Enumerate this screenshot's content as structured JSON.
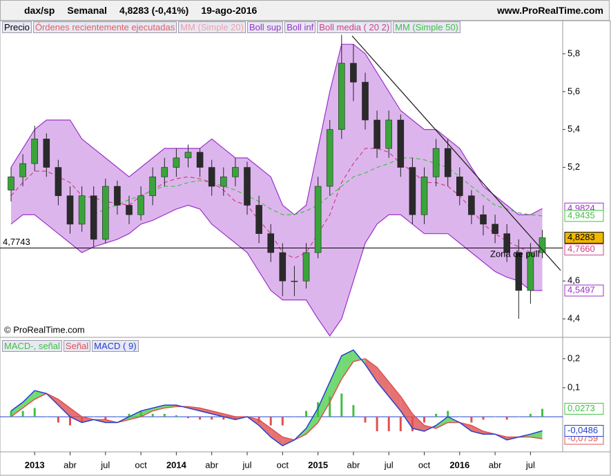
{
  "header": {
    "symbol": "dax/sp",
    "period": "Semanal",
    "quote": "4,8283 (-0,41%)",
    "date": "19-ago-2016",
    "source": "www.ProRealTime.com"
  },
  "chart_data": [
    {
      "type": "candlestick",
      "name": "Precio",
      "watermark": "© ProRealTime.com",
      "annotation": "Zona de pull",
      "other_legend": [
        {
          "name": "Órdenes recientemente ejecutadas",
          "color": "#e06060"
        },
        {
          "name": "MM (Simple 20)",
          "color": "#f0a0a0"
        }
      ],
      "x": [
        "2012-11",
        "2012-12",
        "2013-01",
        "2013-02",
        "2013-03",
        "2013-04",
        "2013-05",
        "2013-06",
        "2013-07",
        "2013-08",
        "2013-09",
        "2013-10",
        "2013-11",
        "2013-12",
        "2014-01",
        "2014-02",
        "2014-03",
        "2014-04",
        "2014-05",
        "2014-06",
        "2014-07",
        "2014-08",
        "2014-09",
        "2014-10",
        "2014-11",
        "2014-12",
        "2015-01",
        "2015-02",
        "2015-03",
        "2015-04",
        "2015-05",
        "2015-06",
        "2015-07",
        "2015-08",
        "2015-09",
        "2015-10",
        "2015-11",
        "2015-12",
        "2016-01",
        "2016-02",
        "2016-03",
        "2016-04",
        "2016-05",
        "2016-06",
        "2016-07",
        "2016-08"
      ],
      "open": [
        5.08,
        5.15,
        5.22,
        5.35,
        5.2,
        5.05,
        4.9,
        5.05,
        4.82,
        5.1,
        5.0,
        4.95,
        5.05,
        5.15,
        5.2,
        5.25,
        5.28,
        5.2,
        5.1,
        5.15,
        5.2,
        5.0,
        4.85,
        4.75,
        4.6,
        4.6,
        4.75,
        5.1,
        5.4,
        5.75,
        5.65,
        5.45,
        5.3,
        5.45,
        5.2,
        4.95,
        5.15,
        5.3,
        5.15,
        5.05,
        4.95,
        4.9,
        4.85,
        4.75,
        4.55,
        4.75
      ],
      "high": [
        5.2,
        5.27,
        5.42,
        5.38,
        5.24,
        5.1,
        5.1,
        5.1,
        5.14,
        5.13,
        5.05,
        5.1,
        5.2,
        5.25,
        5.3,
        5.32,
        5.3,
        5.24,
        5.2,
        5.25,
        5.23,
        5.05,
        4.9,
        4.8,
        4.68,
        4.8,
        5.15,
        5.45,
        5.9,
        5.85,
        5.7,
        5.5,
        5.5,
        5.48,
        5.25,
        5.2,
        5.35,
        5.35,
        5.2,
        5.08,
        5.0,
        4.95,
        4.9,
        4.82,
        4.8,
        4.87
      ],
      "low": [
        5.02,
        5.1,
        5.18,
        5.15,
        5.0,
        4.85,
        4.86,
        4.78,
        4.8,
        4.95,
        4.9,
        4.92,
        5.0,
        5.1,
        5.15,
        5.2,
        5.15,
        5.05,
        5.05,
        5.1,
        4.95,
        4.8,
        4.7,
        4.52,
        4.52,
        4.56,
        4.72,
        5.05,
        5.35,
        5.55,
        5.4,
        5.25,
        5.25,
        5.15,
        4.9,
        4.9,
        5.1,
        5.1,
        5.0,
        4.9,
        4.84,
        4.8,
        4.7,
        4.4,
        4.48,
        4.72
      ],
      "close": [
        5.15,
        5.22,
        5.35,
        5.2,
        5.05,
        4.9,
        5.05,
        4.82,
        5.1,
        5.0,
        4.95,
        5.05,
        5.15,
        5.2,
        5.25,
        5.28,
        5.2,
        5.1,
        5.15,
        5.2,
        5.0,
        4.85,
        4.75,
        4.6,
        4.6,
        4.75,
        5.1,
        5.4,
        5.75,
        5.65,
        5.45,
        5.3,
        5.45,
        5.2,
        4.95,
        5.15,
        5.3,
        5.15,
        5.05,
        4.95,
        4.9,
        4.85,
        4.75,
        4.55,
        4.75,
        4.8283
      ],
      "up_color": "#3aa43a",
      "down_color": "#2a2a2a",
      "marker": {
        "value": 4.8283,
        "label": "4,8283",
        "color": "#f0b800"
      },
      "hline": {
        "value": 4.7743,
        "label": "4,7743"
      },
      "series": [
        {
          "name": "Boll sup",
          "color": "#9b30c8",
          "values": [
            5.2,
            5.3,
            5.4,
            5.45,
            5.45,
            5.45,
            5.35,
            5.3,
            5.25,
            5.2,
            5.15,
            5.2,
            5.25,
            5.3,
            5.3,
            5.3,
            5.3,
            5.35,
            5.3,
            5.25,
            5.25,
            5.2,
            5.15,
            5.0,
            4.95,
            5.0,
            5.3,
            5.6,
            5.85,
            5.85,
            5.8,
            5.7,
            5.6,
            5.5,
            5.45,
            5.4,
            5.4,
            5.35,
            5.3,
            5.2,
            5.1,
            5.05,
            5.0,
            4.95,
            4.95,
            4.9824
          ],
          "marker": {
            "value": 4.9824,
            "label": "4,9824"
          }
        },
        {
          "name": "Boll inf",
          "color": "#9b30c8",
          "values": [
            4.9,
            4.95,
            4.95,
            4.9,
            4.85,
            4.8,
            4.75,
            4.78,
            4.8,
            4.82,
            4.85,
            4.9,
            4.92,
            4.95,
            4.98,
            5.0,
            4.98,
            4.9,
            4.85,
            4.8,
            4.75,
            4.65,
            4.55,
            4.5,
            4.5,
            4.5,
            4.4,
            4.31,
            4.4,
            4.6,
            4.8,
            4.9,
            4.95,
            4.95,
            4.9,
            4.85,
            4.85,
            4.85,
            4.8,
            4.75,
            4.7,
            4.65,
            4.62,
            4.6,
            4.55,
            4.5497
          ],
          "marker": {
            "value": 4.5497,
            "label": "4,5497"
          }
        },
        {
          "name": "Boll media ( 20 2)",
          "color": "#d04080",
          "values": [
            5.05,
            5.12,
            5.18,
            5.18,
            5.15,
            5.12,
            5.05,
            5.04,
            5.02,
            5.01,
            5.0,
            5.05,
            5.08,
            5.12,
            5.14,
            5.15,
            5.14,
            5.12,
            5.08,
            5.02,
            5.0,
            4.92,
            4.85,
            4.75,
            4.72,
            4.75,
            4.85,
            4.95,
            5.12,
            5.22,
            5.3,
            5.3,
            5.28,
            5.22,
            5.18,
            5.12,
            5.12,
            5.1,
            5.05,
            4.98,
            4.9,
            4.85,
            4.81,
            4.78,
            4.75,
            4.766
          ],
          "marker": {
            "value": 4.766,
            "label": "4,7660"
          }
        },
        {
          "name": "MM (Simple 50)",
          "color": "#40c040",
          "values": [
            null,
            null,
            null,
            null,
            null,
            null,
            null,
            4.95,
            4.98,
            5.0,
            5.03,
            5.05,
            5.08,
            5.1,
            5.1,
            5.12,
            5.13,
            5.12,
            5.1,
            5.08,
            5.05,
            5.02,
            4.98,
            4.95,
            4.95,
            4.97,
            5.0,
            5.05,
            5.1,
            5.15,
            5.17,
            5.2,
            5.22,
            5.25,
            5.25,
            5.24,
            5.22,
            5.2,
            5.15,
            5.1,
            5.05,
            5.0,
            4.98,
            4.96,
            4.95,
            4.9435
          ],
          "marker": {
            "value": 4.9435,
            "label": "4,9435"
          }
        }
      ],
      "ylim": [
        4.306,
        5.909
      ],
      "yticks": [
        {
          "value": 4.4,
          "label": "4,4"
        },
        {
          "value": 4.6,
          "label": "4,6"
        },
        {
          "value": 5.2,
          "label": "5,2"
        },
        {
          "value": 5.4,
          "label": "5,4"
        },
        {
          "value": 5.6,
          "label": "5,6"
        },
        {
          "value": 5.8,
          "label": "5,8"
        }
      ],
      "xticks": [
        {
          "value": "2013-01",
          "label": "2013"
        },
        {
          "value": "2013-04",
          "label": "abr"
        },
        {
          "value": "2013-07",
          "label": "jul"
        },
        {
          "value": "2013-10",
          "label": "oct"
        },
        {
          "value": "2014-01",
          "label": "2014"
        },
        {
          "value": "2014-04",
          "label": "abr"
        },
        {
          "value": "2014-07",
          "label": "jul"
        },
        {
          "value": "2014-10",
          "label": "oct"
        },
        {
          "value": "2015-01",
          "label": "2015"
        },
        {
          "value": "2015-04",
          "label": "abr"
        },
        {
          "value": "2015-07",
          "label": "jul"
        },
        {
          "value": "2015-10",
          "label": "oct"
        },
        {
          "value": "2016-01",
          "label": "2016"
        },
        {
          "value": "2016-04",
          "label": "abr"
        },
        {
          "value": "2016-07",
          "label": "jul"
        }
      ]
    },
    {
      "type": "macd",
      "series": [
        {
          "name": "MACD-, señal",
          "color": "#40c040",
          "kind": "histogram",
          "values": [
            0.02,
            0.02,
            0.03,
            0,
            -0.02,
            -0.03,
            -0.02,
            0,
            -0.01,
            0,
            0.01,
            0.02,
            0.01,
            0.01,
            0.005,
            -0.005,
            -0.01,
            -0.01,
            -0.01,
            -0.01,
            0,
            -0.02,
            -0.03,
            -0.03,
            0,
            0.02,
            0.05,
            0.07,
            0.08,
            0.04,
            -0.02,
            -0.05,
            -0.05,
            -0.05,
            -0.05,
            -0.02,
            0.01,
            0.02,
            0,
            -0.02,
            -0.01,
            0,
            -0.01,
            0,
            0.01,
            0.0273
          ],
          "marker": {
            "value": 0.0273,
            "label": "0,0273"
          }
        },
        {
          "name": "Señal",
          "color": "#e05050",
          "kind": "line",
          "values": [
            0.0,
            0.03,
            0.06,
            0.08,
            0.06,
            0.03,
            0.0,
            -0.01,
            -0.01,
            -0.02,
            -0.01,
            0.0,
            0.02,
            0.03,
            0.035,
            0.035,
            0.03,
            0.02,
            0.01,
            0.0,
            0.0,
            -0.01,
            -0.04,
            -0.07,
            -0.08,
            -0.06,
            -0.02,
            0.05,
            0.13,
            0.19,
            0.2,
            0.17,
            0.12,
            0.07,
            0.01,
            -0.03,
            -0.04,
            -0.02,
            -0.02,
            -0.03,
            -0.05,
            -0.06,
            -0.07,
            -0.07,
            -0.07,
            -0.0759
          ],
          "marker": {
            "value": -0.0759,
            "label": "-0,0759"
          }
        },
        {
          "name": "MACD ( 9)",
          "color": "#2040d0",
          "kind": "line",
          "values": [
            0.02,
            0.05,
            0.09,
            0.08,
            0.04,
            0.0,
            -0.02,
            -0.01,
            -0.02,
            -0.02,
            0.0,
            0.02,
            0.03,
            0.04,
            0.04,
            0.03,
            0.02,
            0.01,
            0.0,
            -0.01,
            0.0,
            -0.03,
            -0.07,
            -0.1,
            -0.08,
            -0.04,
            0.03,
            0.12,
            0.21,
            0.23,
            0.18,
            0.12,
            0.07,
            0.02,
            -0.04,
            -0.05,
            -0.03,
            0.0,
            -0.02,
            -0.05,
            -0.06,
            -0.06,
            -0.08,
            -0.07,
            -0.06,
            -0.0486
          ],
          "marker": {
            "value": -0.0486,
            "label": "-0,0486"
          }
        }
      ],
      "ylim": [
        -0.121,
        0.271
      ],
      "yticks": [
        {
          "value": 0.1,
          "label": "0,1"
        },
        {
          "value": 0.2,
          "label": "0,2"
        }
      ]
    }
  ]
}
